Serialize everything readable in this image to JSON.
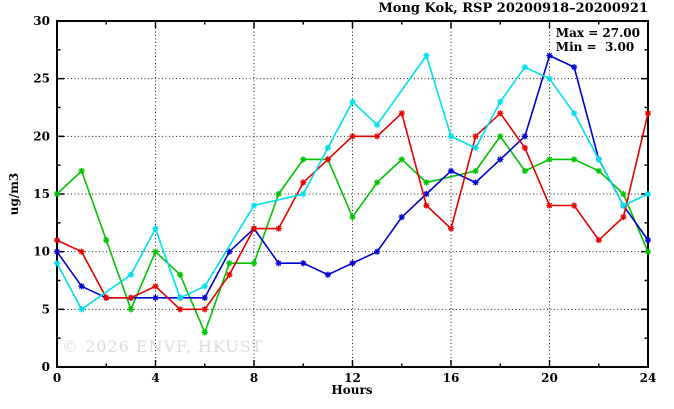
{
  "header": {
    "title": "Mong Kok, RSP 20200918–20200921",
    "max_label": "Max = 27.00",
    "min_label": "Min =  3.00"
  },
  "watermark": "© 2026 ENVF, HKUST",
  "chart_data": {
    "type": "line",
    "title": "Mong Kok, RSP 20200918–20200921",
    "xlabel": "Hours",
    "ylabel": "ug/m3",
    "xlim": [
      0,
      24
    ],
    "ylim": [
      0,
      30
    ],
    "x_major_ticks": [
      0,
      4,
      8,
      12,
      16,
      20,
      24
    ],
    "x_minor_step": 2,
    "y_major_ticks": [
      0,
      5,
      10,
      15,
      20,
      25,
      30
    ],
    "y_minor_step": 2.5,
    "grid": true,
    "legend": "none",
    "annotations": {
      "max": 27.0,
      "min": 3.0
    },
    "x": [
      0,
      1,
      2,
      3,
      4,
      5,
      6,
      7,
      8,
      9,
      10,
      11,
      12,
      13,
      14,
      15,
      16,
      17,
      18,
      19,
      20,
      21,
      22,
      23,
      24
    ],
    "series": [
      {
        "name": "red",
        "color": "#e60000",
        "values": [
          11,
          10,
          6,
          6,
          7,
          5,
          5,
          8,
          12,
          12,
          16,
          18,
          20,
          20,
          22,
          14,
          12,
          20,
          22,
          19,
          14,
          14,
          11,
          13,
          22
        ]
      },
      {
        "name": "green",
        "color": "#00c300",
        "values": [
          15,
          17,
          11,
          5,
          10,
          8,
          3,
          9,
          9,
          15,
          18,
          18,
          13,
          16,
          18,
          16,
          null,
          17,
          20,
          17,
          18,
          18,
          17,
          15,
          10
        ]
      },
      {
        "name": "blue",
        "color": "#0000d2",
        "values": [
          10,
          7,
          6,
          6,
          6,
          6,
          6,
          10,
          12,
          9,
          9,
          8,
          9,
          10,
          13,
          15,
          17,
          16,
          18,
          20,
          27,
          26,
          18,
          14,
          11
        ]
      },
      {
        "name": "cyan",
        "color": "#00e0ea",
        "values": [
          9,
          5,
          null,
          8,
          12,
          6,
          7,
          null,
          14,
          null,
          15,
          19,
          23,
          21,
          null,
          27,
          20,
          19,
          23,
          26,
          25,
          22,
          18,
          14,
          15
        ]
      }
    ]
  },
  "style": {
    "grid_color": "#222222",
    "frame_color": "#000000",
    "background": "#ffffff",
    "watermark_color": "#dcdcdc"
  }
}
